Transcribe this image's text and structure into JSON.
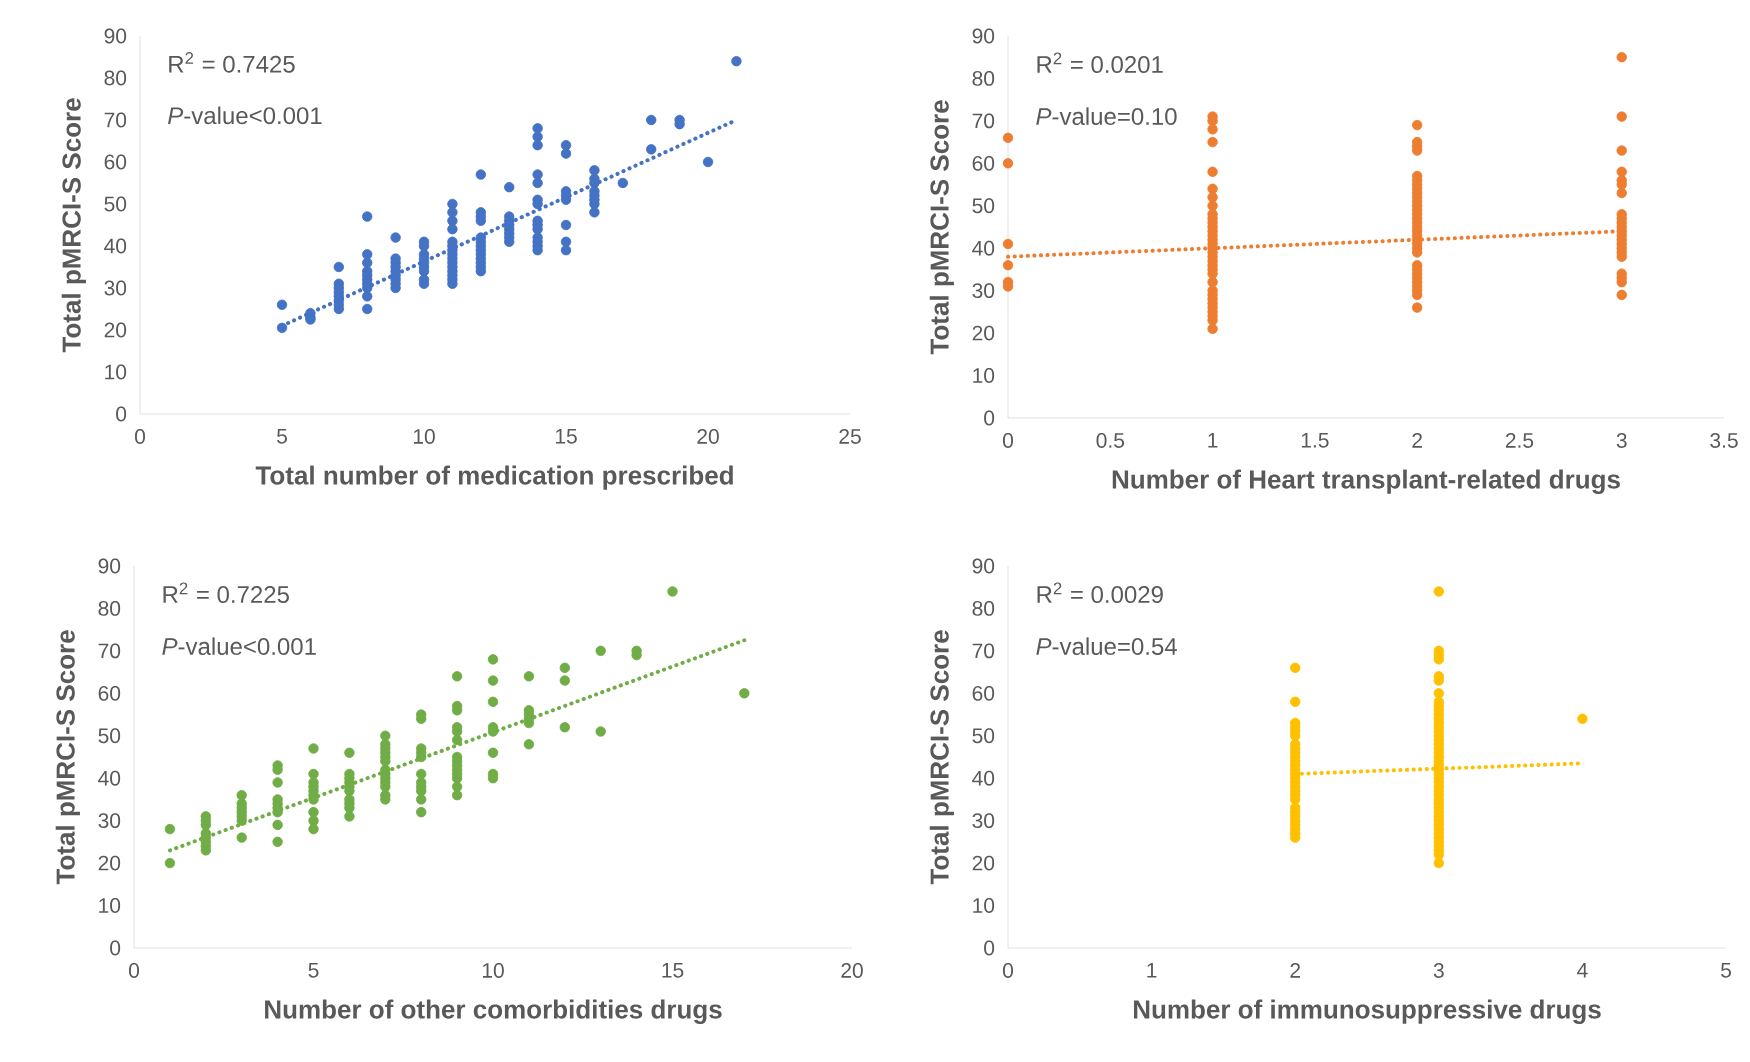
{
  "chart_data": [
    {
      "type": "scatter",
      "xlabel": "Total number of medication prescribed",
      "ylabel": "Total pMRCI-S Score",
      "annotations": [
        "R$^{2}$ = 0.7425",
        "*P*-value<0.001"
      ],
      "xlim": [
        0,
        25
      ],
      "xticks": [
        0,
        5,
        10,
        15,
        20,
        25
      ],
      "ylim": [
        0,
        90
      ],
      "yticks": [
        0,
        10,
        20,
        30,
        40,
        50,
        60,
        70,
        80,
        90
      ],
      "series": [
        {
          "type": "scatter",
          "marker": "circle",
          "color": "#4472c4",
          "x": [
            5,
            5,
            6,
            6,
            6,
            7,
            7,
            7,
            7,
            7,
            7,
            7,
            7,
            8,
            8,
            8,
            8,
            8,
            8,
            8,
            8,
            8,
            8,
            9,
            9,
            9,
            9,
            9,
            9,
            9,
            9,
            9,
            10,
            10,
            10,
            10,
            10,
            10,
            10,
            10,
            10,
            11,
            11,
            11,
            11,
            11,
            11,
            11,
            11,
            11,
            11,
            11,
            11,
            11,
            11,
            11,
            12,
            12,
            12,
            12,
            12,
            12,
            12,
            12,
            12,
            12,
            12,
            12,
            12,
            13,
            13,
            13,
            13,
            13,
            13,
            13,
            13,
            14,
            14,
            14,
            14,
            14,
            14,
            14,
            14,
            14,
            14,
            14,
            14,
            14,
            14,
            15,
            15,
            15,
            15,
            15,
            15,
            15,
            15,
            16,
            16,
            16,
            16,
            16,
            16,
            16,
            16,
            17,
            18,
            18,
            19,
            19,
            20,
            21
          ],
          "values": [
            26,
            20.5,
            24,
            23,
            22.5,
            35,
            31,
            30,
            29,
            28,
            27,
            26,
            25,
            47,
            38,
            36,
            34,
            33,
            32,
            31,
            30,
            28,
            25,
            42,
            37,
            36,
            35,
            34,
            33,
            32,
            31,
            30,
            41,
            40,
            38,
            37,
            36,
            35,
            34,
            32,
            31,
            50,
            48,
            46,
            44,
            41,
            40,
            39,
            38,
            37,
            36,
            35,
            34,
            33,
            32,
            31,
            57,
            48,
            47,
            46,
            42,
            41,
            40,
            39,
            38,
            37,
            36,
            35,
            34,
            54,
            47,
            46,
            45,
            44,
            43,
            42,
            41,
            68,
            66,
            64,
            57,
            55,
            51,
            50,
            46,
            45,
            44,
            42,
            41,
            40,
            39,
            64,
            62,
            53,
            52,
            51,
            45,
            41,
            39,
            58,
            56,
            55,
            53,
            52,
            51,
            50,
            48,
            55,
            70,
            63,
            70,
            69,
            60,
            84
          ]
        },
        {
          "type": "line",
          "marker": "none",
          "line_style": "dotted",
          "color": "#4472c4",
          "x": [
            5,
            21
          ],
          "values": [
            21,
            70
          ]
        }
      ]
    },
    {
      "type": "scatter",
      "xlabel": "Number of Heart transplant-related drugs",
      "ylabel": "Total pMRCI-S Score",
      "annotations": [
        "R$^{2}$ = 0.0201",
        "*P*-value=0.10"
      ],
      "xlim": [
        0,
        3.5
      ],
      "xticks": [
        0,
        0.5,
        1,
        1.5,
        2,
        2.5,
        3,
        3.5
      ],
      "ylim": [
        0,
        90
      ],
      "yticks": [
        0,
        10,
        20,
        30,
        40,
        50,
        60,
        70,
        80,
        90
      ],
      "series": [
        {
          "type": "scatter",
          "marker": "circle",
          "color": "#ed7d31",
          "x": [
            0,
            0,
            0,
            0,
            0,
            0,
            1,
            1,
            1,
            1,
            1,
            1,
            1,
            1,
            1,
            1,
            1,
            1,
            1,
            1,
            1,
            1,
            1,
            1,
            1,
            1,
            1,
            1,
            1,
            1,
            1,
            1,
            1,
            1,
            1,
            1,
            1,
            1,
            1,
            2,
            2,
            2,
            2,
            2,
            2,
            2,
            2,
            2,
            2,
            2,
            2,
            2,
            2,
            2,
            2,
            2,
            2,
            2,
            2,
            2,
            2,
            2,
            2,
            2,
            2,
            2,
            2,
            2,
            2,
            2,
            2,
            3,
            3,
            3,
            3,
            3,
            3,
            3,
            3,
            3,
            3,
            3,
            3,
            3,
            3,
            3,
            3,
            3,
            3,
            3,
            3,
            3,
            3
          ],
          "values": [
            66,
            60,
            41,
            36,
            32,
            31,
            71,
            70,
            68,
            65,
            58,
            54,
            52,
            50,
            48,
            47,
            46,
            45,
            44,
            43,
            42,
            41,
            40,
            39,
            38,
            37,
            36,
            35,
            34,
            32,
            30,
            29,
            28,
            27,
            26,
            25,
            24,
            23,
            21,
            69,
            65,
            64,
            63,
            57,
            56,
            55,
            54,
            53,
            52,
            51,
            50,
            49,
            48,
            47,
            46,
            45,
            44,
            43,
            42,
            41,
            40,
            39,
            36,
            35,
            34,
            33,
            32,
            31,
            30,
            29,
            26,
            85,
            71,
            63,
            58,
            56,
            55,
            53,
            48,
            47,
            46,
            45,
            44,
            43,
            42,
            41,
            40,
            39,
            38,
            34,
            33,
            32,
            29
          ]
        },
        {
          "type": "line",
          "marker": "none",
          "line_style": "dotted",
          "color": "#ed7d31",
          "x": [
            0,
            3
          ],
          "values": [
            38,
            44
          ]
        }
      ]
    },
    {
      "type": "scatter",
      "xlabel": "Number of other comorbidities drugs",
      "ylabel": "Total pMRCI-S Score",
      "annotations": [
        "R$^{2}$ = 0.7225",
        "*P*-value<0.001"
      ],
      "xlim": [
        0,
        20
      ],
      "xticks": [
        0,
        5,
        10,
        15,
        20
      ],
      "ylim": [
        0,
        90
      ],
      "yticks": [
        0,
        10,
        20,
        30,
        40,
        50,
        60,
        70,
        80,
        90
      ],
      "series": [
        {
          "type": "scatter",
          "marker": "circle",
          "color": "#70ad47",
          "x": [
            1,
            1,
            2,
            2,
            2,
            2,
            2,
            2,
            2,
            2,
            3,
            3,
            3,
            3,
            3,
            3,
            3,
            4,
            4,
            4,
            4,
            4,
            4,
            4,
            4,
            4,
            5,
            5,
            5,
            5,
            5,
            5,
            5,
            5,
            5,
            5,
            6,
            6,
            6,
            6,
            6,
            6,
            6,
            6,
            6,
            6,
            7,
            7,
            7,
            7,
            7,
            7,
            7,
            7,
            7,
            7,
            7,
            7,
            7,
            8,
            8,
            8,
            8,
            8,
            8,
            8,
            8,
            8,
            8,
            8,
            9,
            9,
            9,
            9,
            9,
            9,
            9,
            9,
            9,
            9,
            9,
            9,
            9,
            9,
            10,
            10,
            10,
            10,
            10,
            10,
            10,
            10,
            11,
            11,
            11,
            11,
            11,
            11,
            12,
            12,
            12,
            13,
            13,
            14,
            14,
            15,
            17
          ],
          "values": [
            28,
            20,
            31,
            30,
            29,
            27,
            26,
            25,
            24,
            23,
            36,
            34,
            33,
            32,
            31,
            30,
            26,
            43,
            42,
            39,
            35,
            34,
            33,
            32,
            29,
            25,
            47,
            41,
            39,
            38,
            37,
            36,
            35,
            32,
            30,
            28,
            46,
            41,
            40,
            39,
            38,
            37,
            35,
            34,
            33,
            31,
            50,
            48,
            47,
            46,
            45,
            44,
            42,
            41,
            40,
            39,
            38,
            36,
            35,
            55,
            54,
            47,
            46,
            45,
            41,
            39,
            38,
            37,
            35,
            32,
            64,
            57,
            56,
            52,
            51,
            49,
            45,
            44,
            43,
            42,
            41,
            40,
            38,
            36,
            68,
            63,
            58,
            52,
            51,
            46,
            41,
            40,
            64,
            56,
            55,
            54,
            53,
            48,
            66,
            63,
            52,
            70,
            51,
            70,
            69,
            84,
            60
          ]
        },
        {
          "type": "line",
          "marker": "none",
          "line_style": "dotted",
          "color": "#70ad47",
          "x": [
            1,
            17
          ],
          "values": [
            23,
            72.5
          ]
        }
      ]
    },
    {
      "type": "scatter",
      "xlabel": "Number of immunosuppressive drugs",
      "ylabel": "Total pMRCI-S Score",
      "annotations": [
        "R$^{2}$ = 0.0029",
        "*P*-value=0.54"
      ],
      "xlim": [
        0,
        5
      ],
      "xticks": [
        0,
        1,
        2,
        3,
        4,
        5
      ],
      "ylim": [
        0,
        90
      ],
      "yticks": [
        0,
        10,
        20,
        30,
        40,
        50,
        60,
        70,
        80,
        90
      ],
      "series": [
        {
          "type": "scatter",
          "marker": "circle",
          "color": "#ffc000",
          "x": [
            2,
            2,
            2,
            2,
            2,
            2,
            2,
            2,
            2,
            2,
            2,
            2,
            2,
            2,
            2,
            2,
            2,
            2,
            2,
            2,
            2,
            2,
            2,
            2,
            2,
            2,
            2,
            2,
            3,
            3,
            3,
            3,
            3,
            3,
            3,
            3,
            3,
            3,
            3,
            3,
            3,
            3,
            3,
            3,
            3,
            3,
            3,
            3,
            3,
            3,
            3,
            3,
            3,
            3,
            3,
            3,
            3,
            3,
            3,
            3,
            3,
            3,
            3,
            3,
            3,
            3,
            3,
            3,
            3,
            3,
            3,
            3,
            3,
            4
          ],
          "values": [
            66,
            58,
            53,
            52,
            51,
            50,
            48,
            47,
            46,
            45,
            44,
            43,
            42,
            41,
            40,
            39,
            38,
            37,
            36,
            35,
            33,
            32,
            31,
            30,
            29,
            28,
            27,
            26,
            84,
            70,
            69,
            68,
            64,
            63,
            60,
            58,
            57,
            56,
            55,
            54,
            53,
            52,
            51,
            50,
            49,
            48,
            47,
            46,
            45,
            44,
            43,
            42,
            41,
            40,
            39,
            38,
            37,
            36,
            35,
            34,
            33,
            32,
            31,
            30,
            29,
            28,
            27,
            26,
            25,
            24,
            23,
            22,
            20,
            54
          ]
        },
        {
          "type": "line",
          "marker": "none",
          "line_style": "dotted",
          "color": "#ffc000",
          "x": [
            2,
            4
          ],
          "values": [
            41,
            43.5
          ]
        }
      ]
    }
  ]
}
